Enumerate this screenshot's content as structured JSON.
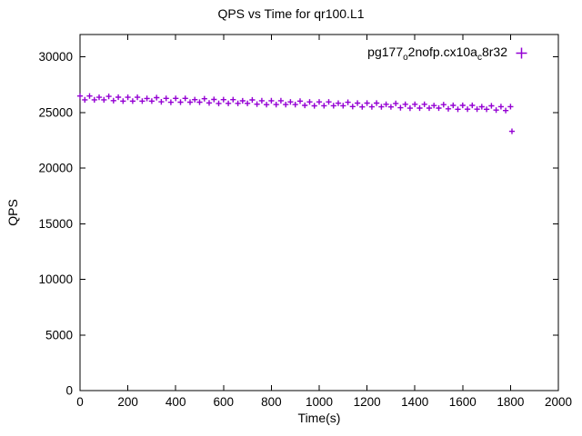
{
  "chart_data": {
    "type": "scatter",
    "title": "QPS vs Time for qr100.L1",
    "xlabel": "Time(s)",
    "ylabel": "QPS",
    "xlim": [
      0,
      2000
    ],
    "ylim": [
      0,
      32000
    ],
    "xticks": [
      0,
      200,
      400,
      600,
      800,
      1000,
      1200,
      1400,
      1600,
      1800,
      2000
    ],
    "yticks": [
      0,
      5000,
      10000,
      15000,
      20000,
      25000,
      30000
    ],
    "grid": false,
    "legend_position": "top-right-inside",
    "series": [
      {
        "name": "pg177_o2nofp.cx10a_c8r32",
        "color": "#9400d3",
        "marker": "plus",
        "x_start": 0,
        "x_step": 20,
        "values": [
          26470,
          26130,
          26470,
          26130,
          26360,
          26130,
          26440,
          26060,
          26370,
          26020,
          26360,
          26020,
          26360,
          26020,
          26250,
          26020,
          26330,
          25950,
          26260,
          25910,
          26260,
          25920,
          26260,
          25920,
          26150,
          25920,
          26230,
          25850,
          26160,
          25800,
          26150,
          25810,
          26150,
          25810,
          26040,
          25810,
          26120,
          25740,
          26050,
          25700,
          26050,
          25710,
          26050,
          25710,
          25940,
          25710,
          26020,
          25630,
          25940,
          25590,
          25940,
          25600,
          25940,
          25600,
          25830,
          25600,
          25910,
          25530,
          25840,
          25490,
          25840,
          25500,
          25840,
          25500,
          25730,
          25490,
          25800,
          25420,
          25730,
          25380,
          25730,
          25390,
          25730,
          25390,
          25620,
          25390,
          25700,
          25320,
          25630,
          25280,
          25630,
          25290,
          25630,
          25290,
          25510,
          25280,
          25590,
          25210,
          25520,
          25170,
          25520
        ],
        "outliers": [
          [
            1806,
            23300
          ]
        ]
      }
    ],
    "border_color": "#000000",
    "text_color": "#000000"
  },
  "legend": {
    "p1": "pg177",
    "s1": "o",
    "p2": "2nofp.cx10a",
    "s2": "c",
    "p3": "8r32"
  }
}
